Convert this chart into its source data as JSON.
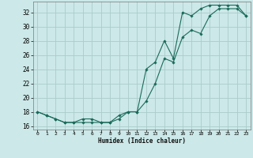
{
  "xlabel": "Humidex (Indice chaleur)",
  "bg_color": "#cce8e8",
  "grid_color": "#aacccc",
  "line_color": "#1a6b5a",
  "xlim": [
    -0.5,
    23.5
  ],
  "ylim": [
    15.5,
    33.5
  ],
  "xticks": [
    0,
    1,
    2,
    3,
    4,
    5,
    6,
    7,
    8,
    9,
    10,
    11,
    12,
    13,
    14,
    15,
    16,
    17,
    18,
    19,
    20,
    21,
    22,
    23
  ],
  "yticks": [
    16,
    18,
    20,
    22,
    24,
    26,
    28,
    30,
    32
  ],
  "line1_x": [
    0,
    1,
    2,
    3,
    4,
    5,
    6,
    7,
    8,
    9,
    10,
    11,
    12,
    13,
    14,
    15,
    16,
    17,
    18,
    19,
    20,
    21,
    22,
    23
  ],
  "line1_y": [
    18,
    17.5,
    17,
    16.5,
    16.5,
    16.5,
    16.5,
    16.5,
    16.5,
    17,
    18,
    18,
    19.5,
    22,
    25.5,
    25,
    28.5,
    29.5,
    29,
    31.5,
    32.5,
    32.5,
    32.5,
    31.5
  ],
  "line2_x": [
    0,
    1,
    2,
    3,
    4,
    5,
    6,
    7,
    8,
    9,
    10,
    11,
    12,
    13,
    14,
    15,
    16,
    17,
    18,
    19,
    20,
    21,
    22,
    23
  ],
  "line2_y": [
    18,
    17.5,
    17,
    16.5,
    16.5,
    17,
    17,
    16.5,
    16.5,
    17.5,
    18,
    18,
    24,
    25,
    28,
    25.5,
    32,
    31.5,
    32.5,
    33,
    33,
    33,
    33,
    31.5
  ]
}
